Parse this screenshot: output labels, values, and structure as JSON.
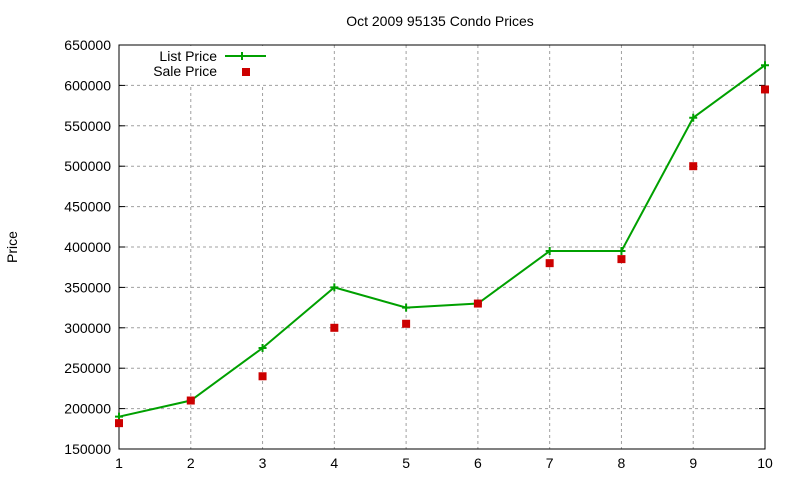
{
  "chart_data": {
    "type": "line",
    "title": "Oct 2009 95135 Condo Prices",
    "xlabel": "",
    "ylabel": "Price",
    "x": [
      1,
      2,
      3,
      4,
      5,
      6,
      7,
      8,
      9,
      10
    ],
    "xlim": [
      1,
      10
    ],
    "ylim": [
      150000,
      650000
    ],
    "yticks": [
      150000,
      200000,
      250000,
      300000,
      350000,
      400000,
      450000,
      500000,
      550000,
      600000,
      650000
    ],
    "xticks": [
      1,
      2,
      3,
      4,
      5,
      6,
      7,
      8,
      9,
      10
    ],
    "grid": true,
    "legend_position": "top-left",
    "series": [
      {
        "name": "List Price",
        "style": "line+cross",
        "color": "#00a000",
        "values": [
          190000,
          210000,
          275000,
          350000,
          325000,
          330000,
          395000,
          395000,
          560000,
          625000
        ]
      },
      {
        "name": "Sale Price",
        "style": "square-points",
        "color": "#cc0000",
        "values": [
          182000,
          210000,
          240000,
          300000,
          305000,
          330000,
          380000,
          385000,
          500000,
          595000
        ]
      }
    ]
  }
}
